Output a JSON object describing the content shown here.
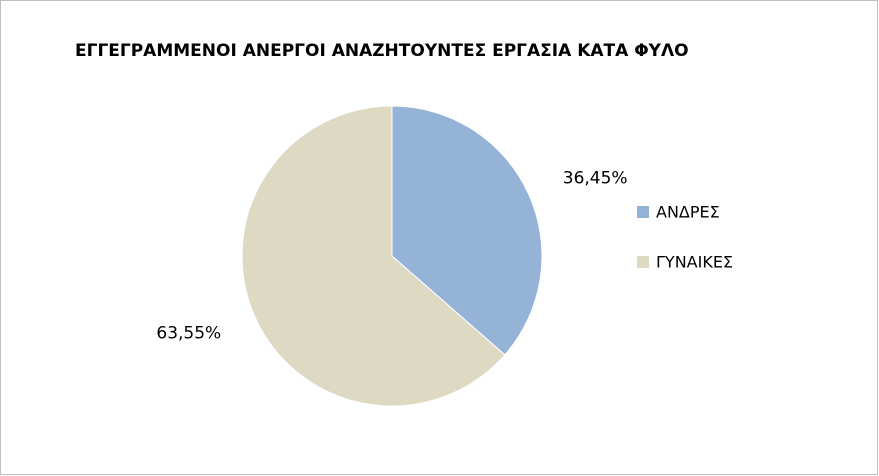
{
  "chart_data": {
    "type": "pie",
    "title": "ΕΓΓΕΓΡΑΜΜΕΝΟΙ ΑΝΕΡΓΟΙ ΑΝΑΖΗΤΟΥΝΤΕΣ ΕΡΓΑΣΙΑ ΚΑΤΑ ΦΥΛΟ",
    "categories": [
      "ΑΝΔΡΕΣ",
      "ΓΥΝΑΙΚΕΣ"
    ],
    "values": [
      36.45,
      63.55
    ],
    "value_labels": [
      "36,45%",
      "63,55%"
    ],
    "colors": [
      "#95b3d7",
      "#ddd9c3"
    ],
    "legend": "right"
  }
}
